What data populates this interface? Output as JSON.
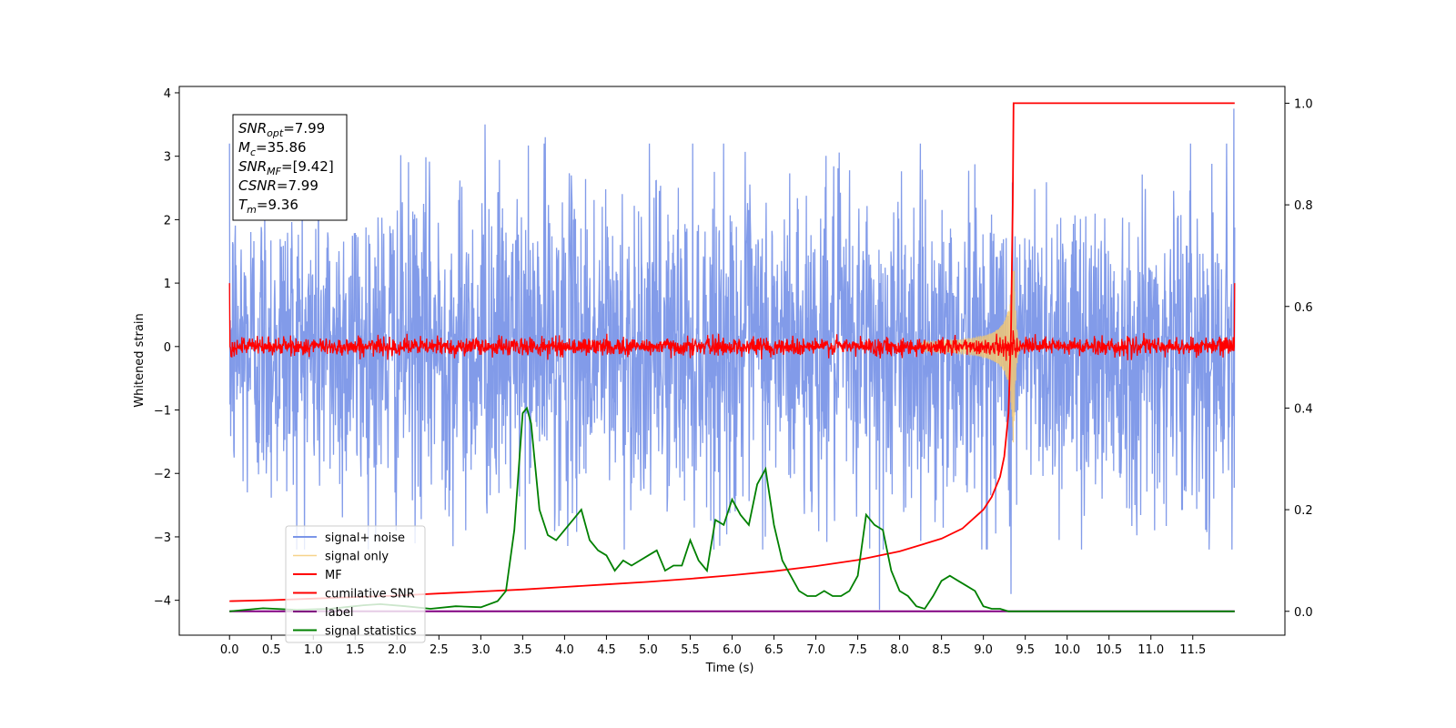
{
  "chart_data": {
    "type": "line",
    "xlabel": "Time (s)",
    "ylabel": "Whitened strain",
    "xlim": [
      -0.6,
      12.6
    ],
    "ylim_left": [
      -4.55,
      4.1
    ],
    "ylim_right": [
      -0.047,
      1.033
    ],
    "x_ticks": [
      0.0,
      0.5,
      1.0,
      1.5,
      2.0,
      2.5,
      3.0,
      3.5,
      4.0,
      4.5,
      5.0,
      5.5,
      6.0,
      6.5,
      7.0,
      7.5,
      8.0,
      8.5,
      9.0,
      9.5,
      10.0,
      10.5,
      11.0,
      11.5
    ],
    "x_tick_labels": [
      "0.0",
      "0.5",
      "1.0",
      "1.5",
      "2.0",
      "2.5",
      "3.0",
      "3.5",
      "4.0",
      "4.5",
      "5.0",
      "5.5",
      "6.0",
      "6.5",
      "7.0",
      "7.5",
      "8.0",
      "8.5",
      "9.0",
      "9.5",
      "10.0",
      "10.5",
      "11.0",
      "11.5"
    ],
    "y_left_ticks": [
      -4,
      -3,
      -2,
      -1,
      0,
      1,
      2,
      3,
      4
    ],
    "y_left_tick_labels": [
      "−4",
      "−3",
      "−2",
      "−1",
      "0",
      "1",
      "2",
      "3",
      "4"
    ],
    "y_right_ticks": [
      0.0,
      0.2,
      0.4,
      0.6,
      0.8,
      1.0
    ],
    "y_right_tick_labels": [
      "0.0",
      "0.2",
      "0.4",
      "0.6",
      "0.8",
      "1.0"
    ],
    "legend_position": "lower-left",
    "grid": false,
    "info_box": {
      "lines": [
        {
          "base": "SNR",
          "sub": "opt",
          "value": "=7.99"
        },
        {
          "base": "M",
          "sub": "c",
          "value": "=35.86"
        },
        {
          "base": "SNR",
          "sub": "MF",
          "value": "=[9.42]"
        },
        {
          "base": "CSNR",
          "sub": "",
          "value": "=7.99"
        },
        {
          "base": "T",
          "sub": "m",
          "value": "=9.36"
        }
      ]
    },
    "series": [
      {
        "name": "signal+ noise",
        "axis": "left",
        "color": "#7b96e8",
        "style": "noise",
        "x_range": [
          0.0,
          12.0
        ],
        "approx_range": [
          -2.5,
          2.5
        ],
        "peak_values": [
          [
            3.05,
            3.5
          ],
          [
            3.77,
            3.3
          ],
          [
            7.76,
            -4.15
          ],
          [
            9.33,
            -3.9
          ],
          [
            11.99,
            3.75
          ]
        ]
      },
      {
        "name": "signal only",
        "axis": "left",
        "color": "#f5c86e",
        "style": "chirp",
        "merger_time": 9.36,
        "peak_amplitude": 1.8
      },
      {
        "name": "MF",
        "axis": "left",
        "color": "#ff0000",
        "style": "noise",
        "x_range": [
          0.0,
          12.0
        ],
        "approx_range": [
          -0.15,
          0.15
        ]
      },
      {
        "name": "cumilative SNR",
        "axis": "right",
        "color": "#ff0000",
        "x": [
          0.0,
          0.5,
          1.0,
          1.5,
          2.0,
          2.5,
          3.0,
          3.5,
          4.0,
          4.5,
          5.0,
          5.5,
          6.0,
          6.5,
          7.0,
          7.5,
          8.0,
          8.5,
          8.75,
          9.0,
          9.1,
          9.2,
          9.25,
          9.3,
          9.33,
          9.35,
          9.36,
          12.0
        ],
        "y": [
          0.02,
          0.022,
          0.025,
          0.028,
          0.031,
          0.035,
          0.039,
          0.043,
          0.048,
          0.053,
          0.058,
          0.064,
          0.071,
          0.079,
          0.089,
          0.101,
          0.118,
          0.143,
          0.163,
          0.2,
          0.225,
          0.265,
          0.305,
          0.39,
          0.55,
          0.8,
          1.0,
          1.0
        ]
      },
      {
        "name": "label",
        "axis": "right",
        "color": "#800080",
        "x": [
          0.0,
          12.0
        ],
        "y": [
          0.0,
          0.0
        ]
      },
      {
        "name": "signal statistics",
        "axis": "right",
        "color": "#008000",
        "x": [
          0.0,
          0.4,
          0.8,
          1.2,
          1.6,
          1.8,
          2.1,
          2.4,
          2.7,
          3.0,
          3.2,
          3.3,
          3.4,
          3.5,
          3.55,
          3.6,
          3.7,
          3.8,
          3.9,
          4.0,
          4.1,
          4.2,
          4.3,
          4.4,
          4.5,
          4.6,
          4.7,
          4.8,
          4.9,
          5.0,
          5.1,
          5.2,
          5.3,
          5.4,
          5.5,
          5.6,
          5.7,
          5.8,
          5.9,
          6.0,
          6.1,
          6.2,
          6.3,
          6.4,
          6.5,
          6.6,
          6.7,
          6.8,
          6.9,
          7.0,
          7.1,
          7.2,
          7.3,
          7.4,
          7.5,
          7.6,
          7.7,
          7.8,
          7.9,
          8.0,
          8.1,
          8.2,
          8.3,
          8.4,
          8.5,
          8.6,
          8.7,
          8.8,
          8.9,
          9.0,
          9.1,
          9.2,
          9.3,
          9.4,
          9.6,
          10.0,
          11.0,
          12.0
        ],
        "y": [
          0.0,
          0.006,
          0.003,
          0.005,
          0.012,
          0.014,
          0.01,
          0.005,
          0.01,
          0.008,
          0.02,
          0.04,
          0.16,
          0.39,
          0.4,
          0.37,
          0.2,
          0.15,
          0.14,
          0.16,
          0.18,
          0.2,
          0.14,
          0.12,
          0.11,
          0.08,
          0.1,
          0.09,
          0.1,
          0.11,
          0.12,
          0.08,
          0.09,
          0.09,
          0.14,
          0.1,
          0.08,
          0.18,
          0.17,
          0.22,
          0.19,
          0.17,
          0.25,
          0.28,
          0.17,
          0.1,
          0.07,
          0.04,
          0.03,
          0.03,
          0.04,
          0.03,
          0.03,
          0.04,
          0.07,
          0.19,
          0.17,
          0.16,
          0.08,
          0.04,
          0.03,
          0.01,
          0.005,
          0.03,
          0.06,
          0.07,
          0.06,
          0.05,
          0.04,
          0.01,
          0.005,
          0.005,
          0.0,
          0.0,
          0.0,
          0.0,
          0.0,
          0.0
        ]
      }
    ]
  }
}
